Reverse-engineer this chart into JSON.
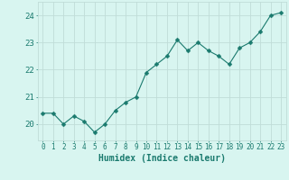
{
  "x": [
    0,
    1,
    2,
    3,
    4,
    5,
    6,
    7,
    8,
    9,
    10,
    11,
    12,
    13,
    14,
    15,
    16,
    17,
    18,
    19,
    20,
    21,
    22,
    23
  ],
  "y": [
    20.4,
    20.4,
    20.0,
    20.3,
    20.1,
    19.7,
    20.0,
    20.5,
    20.8,
    21.0,
    21.9,
    22.2,
    22.5,
    23.1,
    22.7,
    23.0,
    22.7,
    22.5,
    22.2,
    22.8,
    23.0,
    23.4,
    24.0,
    24.1
  ],
  "line_color": "#1a7a6e",
  "marker": "D",
  "marker_size": 2.5,
  "bg_color": "#d8f5f0",
  "grid_color": "#c0dcd8",
  "xlabel": "Humidex (Indice chaleur)",
  "ylabel_ticks": [
    20,
    21,
    22,
    23,
    24
  ],
  "xlim": [
    -0.5,
    23.5
  ],
  "ylim": [
    19.4,
    24.5
  ],
  "tick_label_color": "#1a7a6e",
  "xlabel_color": "#1a7a6e",
  "tick_fontsize": 5.5,
  "ytick_fontsize": 6.5,
  "xlabel_fontsize": 7.0
}
